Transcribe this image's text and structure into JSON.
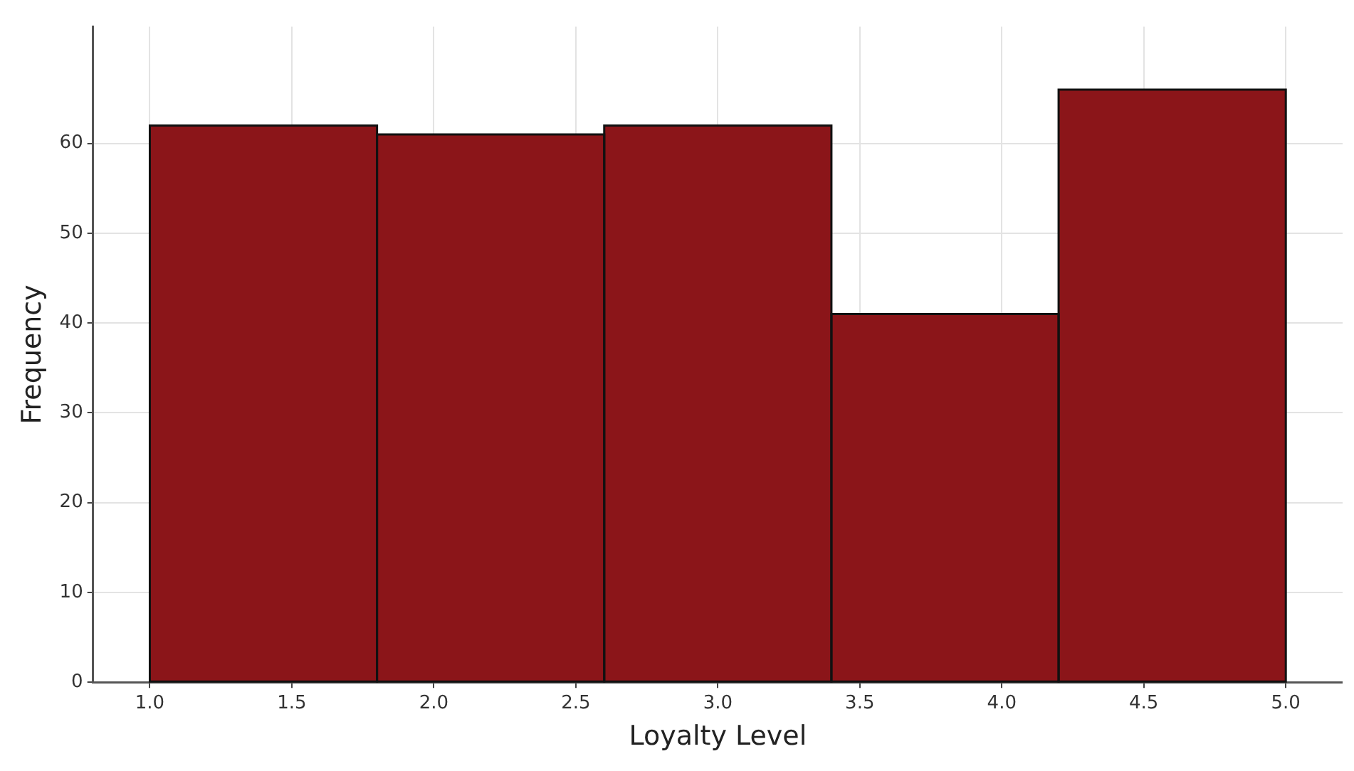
{
  "chart_data": {
    "type": "histogram",
    "xlabel": "Loyalty Level",
    "ylabel": "Frequency",
    "bins": [
      1.0,
      1.8,
      2.6,
      3.4,
      4.2,
      5.0
    ],
    "values": [
      62,
      61,
      62,
      41,
      66
    ],
    "color": "#8b1519",
    "xlim": [
      0.8,
      5.2
    ],
    "xticks": [
      {
        "value": 1,
        "label": "1.0"
      },
      {
        "value": 1.5,
        "label": "1.5"
      },
      {
        "value": 2,
        "label": "2.0"
      },
      {
        "value": 2.5,
        "label": "2.5"
      },
      {
        "value": 3,
        "label": "3.0"
      },
      {
        "value": 3.5,
        "label": "3.5"
      },
      {
        "value": 4,
        "label": "4.0"
      },
      {
        "value": 4.5,
        "label": "4.5"
      },
      {
        "value": 5,
        "label": "5.0"
      }
    ],
    "ylim": [
      0,
      73
    ],
    "yticks": [
      0,
      10,
      20,
      30,
      40,
      50,
      60
    ],
    "grid": true,
    "legend": false
  }
}
